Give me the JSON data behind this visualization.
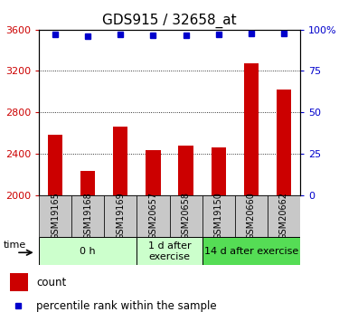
{
  "title": "GDS915 / 32658_at",
  "samples": [
    "GSM19165",
    "GSM19168",
    "GSM19169",
    "GSM20657",
    "GSM20658",
    "GSM19150",
    "GSM20660",
    "GSM20662"
  ],
  "counts": [
    2580,
    2230,
    2660,
    2430,
    2480,
    2460,
    3270,
    3020
  ],
  "percentiles": [
    97,
    96,
    97,
    96.5,
    96.5,
    97,
    97.5,
    97.5
  ],
  "ylim_left": [
    2000,
    3600
  ],
  "ylim_right": [
    0,
    100
  ],
  "bar_color": "#cc0000",
  "dot_color": "#0000cc",
  "groups": [
    {
      "label": "0 h",
      "start": 0,
      "end": 3,
      "light": true
    },
    {
      "label": "1 d after\nexercise",
      "start": 3,
      "end": 5,
      "light": true
    },
    {
      "label": "14 d after exercise",
      "start": 5,
      "end": 8,
      "light": false
    }
  ],
  "yticks_left": [
    2000,
    2400,
    2800,
    3200,
    3600
  ],
  "yticks_right": [
    0,
    25,
    50,
    75,
    100
  ],
  "grid_values": [
    2400,
    2800,
    3200
  ],
  "legend_count": "count",
  "legend_pct": "percentile rank within the sample",
  "title_fontsize": 11,
  "tick_fontsize": 8,
  "group_label_fontsize": 8,
  "sample_fontsize": 7,
  "bar_width": 0.45,
  "light_green": "#ccffcc",
  "dark_green": "#55dd55",
  "gray_box": "#c8c8c8"
}
